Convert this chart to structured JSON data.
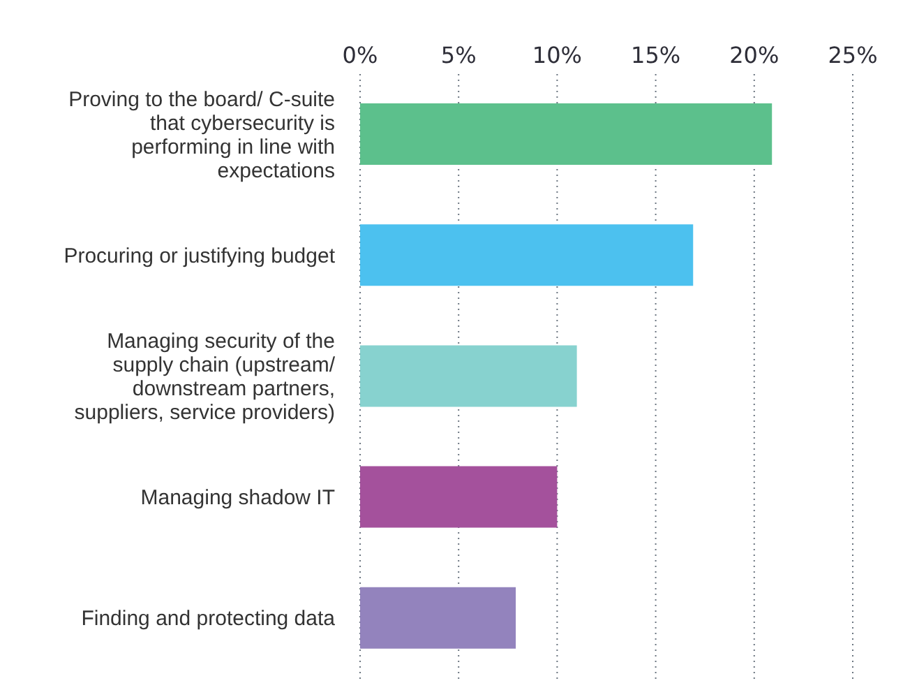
{
  "chart_data": {
    "type": "bar",
    "orientation": "horizontal",
    "categories": [
      "Proving to the board/ C-suite that cybersecurity is performing in line with expectations",
      "Procuring or justifying budget",
      "Managing security of the supply chain (upstream/ downstream partners, suppliers, service providers)",
      "Managing shadow IT",
      "Finding and protecting data"
    ],
    "values": [
      20.9,
      16.9,
      11.0,
      10.0,
      7.9
    ],
    "colors": [
      "#5cc08c",
      "#4cc1ef",
      "#87d2cf",
      "#a4519c",
      "#9383bd"
    ],
    "xlim": [
      0,
      25
    ],
    "xticks": [
      {
        "value": 0,
        "label": "0%"
      },
      {
        "value": 5,
        "label": "5%"
      },
      {
        "value": 10,
        "label": "10%"
      },
      {
        "value": 15,
        "label": "15%"
      },
      {
        "value": 20,
        "label": "20%"
      },
      {
        "value": 25,
        "label": "25%"
      }
    ],
    "grid": "x"
  }
}
